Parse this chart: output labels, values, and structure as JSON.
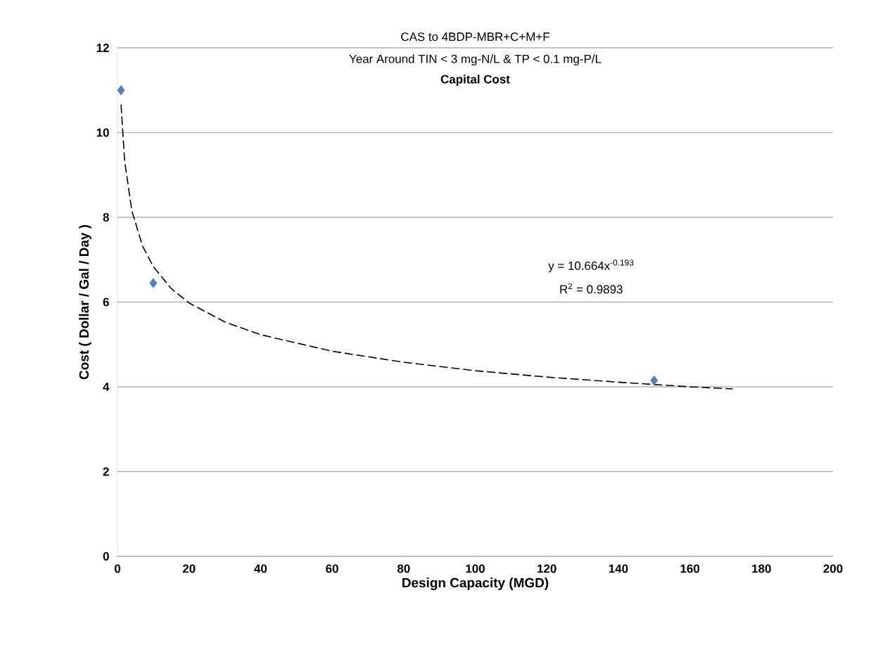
{
  "chart_data": {
    "type": "scatter",
    "title": "CAS to 4BDP-MBR+C+M+F",
    "subtitle": "Year Around TIN < 3 mg-N/L & TP < 0.1 mg-P/L",
    "xlabel": "Design Capacity (MGD)",
    "ylabel": "Cost  ( Dollar / Gal / Day )",
    "annotations": [
      "**Capital Cost**",
      "y = 10.664x$^{-0.193}$",
      "R$^{2}$ = 0.9893"
    ],
    "xlim": [
      0,
      200
    ],
    "xticks": [
      0,
      20,
      40,
      60,
      80,
      100,
      120,
      140,
      160,
      180,
      200
    ],
    "ylim": [
      0,
      12
    ],
    "yticks": [
      0,
      2,
      4,
      6,
      8,
      10,
      12
    ],
    "grid": "y",
    "series": [
      {
        "color": "#4f81bd",
        "marker": "diamond",
        "x": [
          1,
          10,
          150
        ],
        "values": [
          11.0,
          6.45,
          4.15
        ]
      },
      {
        "type": "line",
        "color": "#000000",
        "marker": "none",
        "line_style": "dashed",
        "x": [
          1,
          2,
          4,
          7,
          10,
          15,
          20,
          30,
          40,
          60,
          80,
          100,
          120,
          140,
          160,
          172
        ],
        "values": [
          10.66,
          9.33,
          8.16,
          7.32,
          6.84,
          6.32,
          5.98,
          5.53,
          5.23,
          4.84,
          4.58,
          4.38,
          4.23,
          4.11,
          4.0,
          3.95
        ]
      }
    ]
  }
}
